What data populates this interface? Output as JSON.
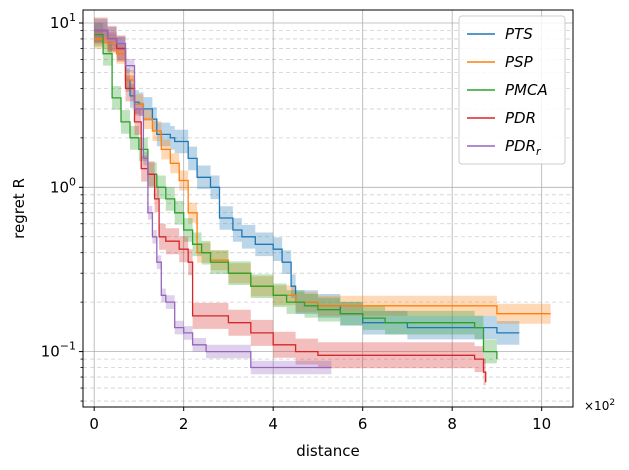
{
  "chart_data": {
    "type": "line",
    "xlabel": "distance",
    "ylabel": "regret R",
    "x_multiplier_text": "×10",
    "x_multiplier_exp": "2",
    "xlim": [
      -0.25,
      10.7
    ],
    "ylim": [
      0.046,
      12
    ],
    "yscale": "log",
    "grid": true,
    "legend_position": "top-right",
    "x_ticks": [
      {
        "value": 0,
        "label": "0"
      },
      {
        "value": 2,
        "label": "2"
      },
      {
        "value": 4,
        "label": "4"
      },
      {
        "value": 6,
        "label": "6"
      },
      {
        "value": 8,
        "label": "8"
      },
      {
        "value": 10,
        "label": "10"
      }
    ],
    "y_ticks": [
      {
        "value": 0.1,
        "base": "10",
        "exp": "−1"
      },
      {
        "value": 1,
        "base": "10",
        "exp": "0"
      },
      {
        "value": 10,
        "base": "10",
        "exp": "1"
      }
    ],
    "series": [
      {
        "name": "PTS",
        "name_sub": "",
        "color": "#1f77b4",
        "x": [
          0,
          0.3,
          0.5,
          0.7,
          0.8,
          0.9,
          1.0,
          1.1,
          1.3,
          1.4,
          1.7,
          1.8,
          2.1,
          2.3,
          2.6,
          2.8,
          3.1,
          3.3,
          3.6,
          4.0,
          4.2,
          4.4,
          4.5,
          4.7,
          5.0,
          5.5,
          6.0,
          7.0,
          8.0,
          8.5,
          9.0,
          9.5
        ],
        "y": [
          9,
          8,
          7,
          4.5,
          3.6,
          3.3,
          3.2,
          3.0,
          2.6,
          2.1,
          2.0,
          1.9,
          1.5,
          1.15,
          1.0,
          0.65,
          0.55,
          0.5,
          0.45,
          0.42,
          0.35,
          0.25,
          0.2,
          0.2,
          0.19,
          0.17,
          0.15,
          0.14,
          0.14,
          0.14,
          0.13,
          0.13
        ],
        "spread": 0.18
      },
      {
        "name": "PSP",
        "name_sub": "",
        "color": "#ff7f0e",
        "x": [
          0,
          0.3,
          0.5,
          0.7,
          0.9,
          1.1,
          1.3,
          1.5,
          1.7,
          1.9,
          2.1,
          2.3,
          2.6,
          3.0,
          3.5,
          4.0,
          4.5,
          5.0,
          6.0,
          7.0,
          8.0,
          8.7,
          9.0,
          10.2
        ],
        "y": [
          8,
          7.5,
          6.5,
          4.5,
          3.2,
          2.6,
          2.2,
          1.7,
          1.4,
          1.1,
          0.7,
          0.4,
          0.36,
          0.3,
          0.25,
          0.22,
          0.2,
          0.19,
          0.19,
          0.19,
          0.19,
          0.19,
          0.17,
          0.17
        ],
        "spread": 0.15
      },
      {
        "name": "PMCA",
        "name_sub": "",
        "color": "#2ca02c",
        "x": [
          0,
          0.2,
          0.4,
          0.6,
          0.8,
          1.0,
          1.2,
          1.4,
          1.6,
          1.8,
          2.0,
          2.2,
          2.4,
          2.6,
          3.0,
          3.5,
          4.0,
          4.3,
          4.7,
          5.0,
          5.5,
          6.0,
          6.5,
          7.0,
          7.5,
          8.0,
          8.5,
          8.7,
          9.0
        ],
        "y": [
          8.5,
          6.5,
          3.5,
          2.5,
          2.0,
          1.7,
          1.2,
          1.0,
          0.85,
          0.7,
          0.55,
          0.45,
          0.4,
          0.35,
          0.3,
          0.25,
          0.22,
          0.2,
          0.19,
          0.18,
          0.17,
          0.16,
          0.15,
          0.15,
          0.15,
          0.15,
          0.14,
          0.1,
          0.09
        ],
        "spread": 0.18
      },
      {
        "name": "PDR",
        "name_sub": "",
        "color": "#d62728",
        "x": [
          0,
          0.3,
          0.5,
          0.7,
          0.9,
          1.05,
          1.2,
          1.35,
          1.45,
          1.6,
          1.9,
          2.1,
          2.2,
          2.5,
          3.0,
          3.5,
          4.0,
          4.5,
          5.0,
          6.0,
          7.0,
          8.0,
          8.5,
          8.7,
          8.75
        ],
        "y": [
          9,
          8,
          7,
          4.0,
          2.5,
          1.3,
          1.2,
          0.85,
          0.5,
          0.47,
          0.42,
          0.35,
          0.165,
          0.165,
          0.15,
          0.13,
          0.11,
          0.1,
          0.095,
          0.095,
          0.095,
          0.095,
          0.09,
          0.075,
          0.065
        ],
        "spread": 0.2
      },
      {
        "name": "PDR",
        "name_sub": "r",
        "color": "#9467bd",
        "x": [
          0,
          0.3,
          0.5,
          0.7,
          0.9,
          1.1,
          1.2,
          1.3,
          1.4,
          1.5,
          1.6,
          1.8,
          2.0,
          2.2,
          2.5,
          3.0,
          3.5,
          4.0,
          4.5,
          5.0,
          5.3
        ],
        "y": [
          9,
          8,
          7.5,
          5.5,
          3.0,
          1.5,
          0.7,
          0.5,
          0.35,
          0.22,
          0.2,
          0.14,
          0.13,
          0.11,
          0.1,
          0.1,
          0.08,
          0.08,
          0.08,
          0.08,
          0.08
        ],
        "spread": 0.1
      }
    ]
  }
}
